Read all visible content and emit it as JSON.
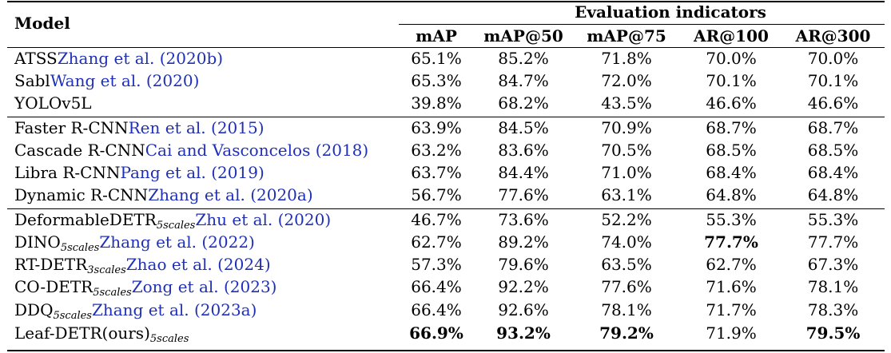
{
  "header": {
    "model": "Model",
    "group": "Evaluation indicators",
    "columns": [
      "mAP",
      "mAP@50",
      "mAP@75",
      "AR@100",
      "AR@300"
    ]
  },
  "rows": [
    {
      "name": "ATSS",
      "sub": "",
      "cite": "Zhang et al. (2020b)",
      "values": [
        "65.1%",
        "85.2%",
        "71.8%",
        "70.0%",
        "70.0%"
      ],
      "bold": []
    },
    {
      "name": "Sabl",
      "sub": "",
      "cite": "Wang et al. (2020)",
      "values": [
        "65.3%",
        "84.7%",
        "72.0%",
        "70.1%",
        "70.1%"
      ],
      "bold": []
    },
    {
      "name": "YOLOv5L",
      "sub": "",
      "cite": "",
      "values": [
        "39.8%",
        "68.2%",
        "43.5%",
        "46.6%",
        "46.6%"
      ],
      "bold": []
    },
    {
      "name": "Faster R-CNN",
      "sub": "",
      "cite": "Ren et al. (2015)",
      "values": [
        "63.9%",
        "84.5%",
        "70.9%",
        "68.7%",
        "68.7%"
      ],
      "bold": []
    },
    {
      "name": "Cascade R-CNN",
      "sub": "",
      "cite": "Cai and Vasconcelos (2018)",
      "values": [
        "63.2%",
        "83.6%",
        "70.5%",
        "68.5%",
        "68.5%"
      ],
      "bold": []
    },
    {
      "name": "Libra R-CNN",
      "sub": "",
      "cite": "Pang et al. (2019)",
      "values": [
        "63.7%",
        "84.4%",
        "71.0%",
        "68.4%",
        "68.4%"
      ],
      "bold": []
    },
    {
      "name": "Dynamic R-CNN",
      "sub": "",
      "cite": "Zhang et al. (2020a)",
      "values": [
        "56.7%",
        "77.6%",
        "63.1%",
        "64.8%",
        "64.8%"
      ],
      "bold": []
    },
    {
      "name": "DeformableDETR",
      "sub": "5scales",
      "cite": "Zhu et al. (2020)",
      "values": [
        "46.7%",
        "73.6%",
        "52.2%",
        "55.3%",
        "55.3%"
      ],
      "bold": []
    },
    {
      "name": "DINO",
      "sub": "5scales",
      "cite": "Zhang et al. (2022)",
      "values": [
        "62.7%",
        "89.2%",
        "74.0%",
        "77.7%",
        "77.7%"
      ],
      "bold": [
        3
      ]
    },
    {
      "name": "RT-DETR",
      "sub": "3scales",
      "cite": "Zhao et al. (2024)",
      "values": [
        "57.3%",
        "79.6%",
        "63.5%",
        "62.7%",
        "67.3%"
      ],
      "bold": []
    },
    {
      "name": "CO-DETR",
      "sub": "5scales",
      "cite": "Zong et al. (2023)",
      "values": [
        "66.4%",
        "92.2%",
        "77.6%",
        "71.6%",
        "78.1%"
      ],
      "bold": []
    },
    {
      "name": "DDQ",
      "sub": "5scales",
      "cite": "Zhang et al. (2023a)",
      "values": [
        "66.4%",
        "92.6%",
        "78.1%",
        "71.7%",
        "78.3%"
      ],
      "bold": []
    },
    {
      "name": "Leaf-DETR(ours)",
      "sub": "5scales",
      "cite": "",
      "values": [
        "66.9%",
        "93.2%",
        "79.2%",
        "71.9%",
        "79.5%"
      ],
      "bold": [
        0,
        1,
        2,
        4
      ]
    }
  ]
}
